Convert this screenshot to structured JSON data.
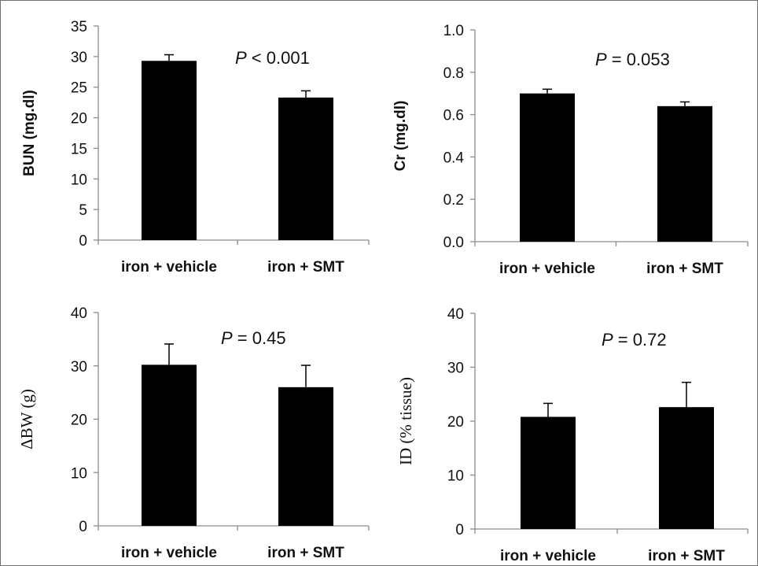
{
  "chart_data": [
    {
      "type": "bar",
      "categories": [
        "iron + vehicle",
        "iron + SMT"
      ],
      "values": [
        29.3,
        23.3
      ],
      "errors": [
        1.0,
        1.1
      ],
      "ylabel": "BUN (mg.dl)",
      "ylim": [
        0,
        35
      ],
      "yticks": [
        "0",
        "5",
        "10",
        "15",
        "20",
        "25",
        "30",
        "35"
      ],
      "annotation": {
        "italic": "P",
        "rest": " < 0.001"
      }
    },
    {
      "type": "bar",
      "categories": [
        "iron + vehicle",
        "iron + SMT"
      ],
      "values": [
        0.7,
        0.64
      ],
      "errors": [
        0.02,
        0.02
      ],
      "ylabel": "Cr (mg.dl)",
      "ylim": [
        0,
        1.0
      ],
      "yticks": [
        "0.0",
        "0.2",
        "0.4",
        "0.6",
        "0.8",
        "1.0"
      ],
      "annotation": {
        "italic": "P",
        "rest": " = 0.053"
      }
    },
    {
      "type": "bar",
      "categories": [
        "iron + vehicle",
        "iron + SMT"
      ],
      "values": [
        30.2,
        26.0
      ],
      "errors": [
        3.9,
        4.1
      ],
      "ylabel": "ΔBW (g)",
      "ylim": [
        0,
        40
      ],
      "yticks": [
        "0",
        "10",
        "20",
        "30",
        "40"
      ],
      "annotation": {
        "italic": "P",
        "rest": " = 0.45"
      }
    },
    {
      "type": "bar",
      "categories": [
        "iron + vehicle",
        "iron + SMT"
      ],
      "values": [
        20.8,
        22.6
      ],
      "errors": [
        2.5,
        4.6
      ],
      "ylabel": "ID (% tissue)",
      "ylim": [
        0,
        40
      ],
      "yticks": [
        "0",
        "10",
        "20",
        "30",
        "40"
      ],
      "annotation": {
        "italic": "P",
        "rest": " = 0.72"
      }
    }
  ]
}
